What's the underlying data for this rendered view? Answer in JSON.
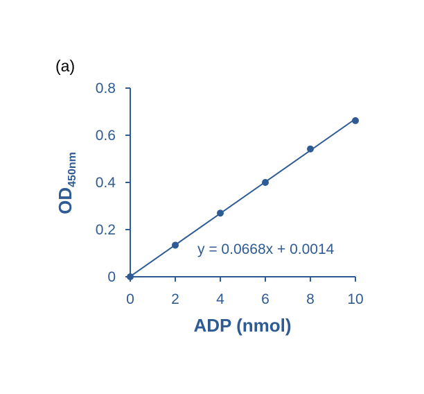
{
  "chart_data": {
    "type": "scatter",
    "panel_label": "(a)",
    "x": [
      0,
      2,
      4,
      6,
      8,
      10
    ],
    "y": [
      0.0,
      0.134,
      0.27,
      0.4,
      0.542,
      0.662
    ],
    "xlim": [
      0,
      10
    ],
    "ylim": [
      0,
      0.8
    ],
    "x_ticks": [
      0,
      2,
      4,
      6,
      8,
      10
    ],
    "y_ticks": [
      0,
      0.2,
      0.4,
      0.6,
      0.8
    ],
    "x_tick_labels": [
      "0",
      "2",
      "4",
      "6",
      "8",
      "10"
    ],
    "y_tick_labels": [
      "0",
      "0.2",
      "0.4",
      "0.6",
      "0.8"
    ],
    "xlabel": "ADP (nmol)",
    "ylabel_main": "OD",
    "ylabel_sub": "450nm",
    "trendline": {
      "slope": 0.0668,
      "intercept": 0.0014
    },
    "equation": "y = 0.0668x + 0.0014",
    "grid": false,
    "color": "#2f5b94"
  }
}
